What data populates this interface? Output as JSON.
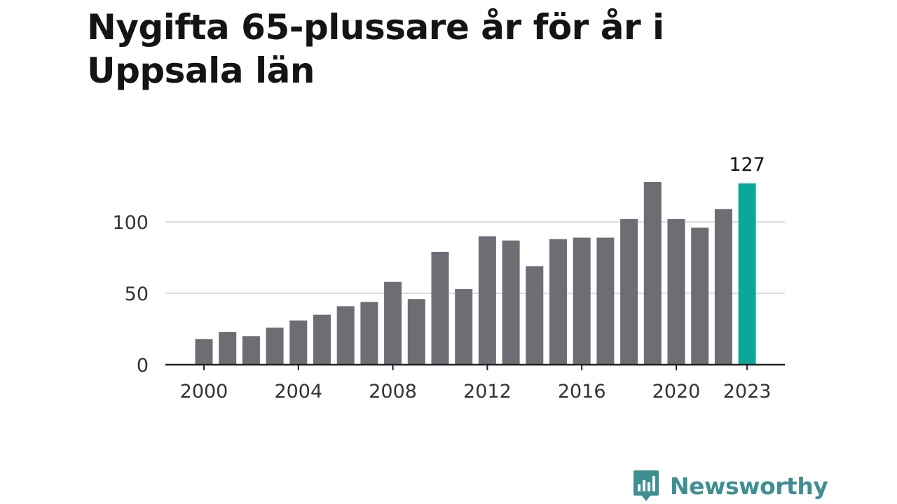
{
  "title": "Nygifta 65-plussare år för år i Uppsala län",
  "brand": {
    "name": "Newsworthy",
    "icon": "newsworthy-logo-icon",
    "color": "#3f8f92"
  },
  "chart_data": {
    "type": "bar",
    "title": "Nygifta 65-plussare år för år i Uppsala län",
    "xlabel": "",
    "ylabel": "",
    "x": [
      2000,
      2001,
      2002,
      2003,
      2004,
      2005,
      2006,
      2007,
      2008,
      2009,
      2010,
      2011,
      2012,
      2013,
      2014,
      2015,
      2016,
      2017,
      2018,
      2019,
      2020,
      2021,
      2022,
      2023
    ],
    "values": [
      18,
      23,
      20,
      26,
      31,
      35,
      41,
      44,
      58,
      46,
      79,
      53,
      90,
      87,
      69,
      88,
      89,
      89,
      102,
      128,
      102,
      96,
      109,
      127
    ],
    "xticks": [
      "2000",
      "2004",
      "2008",
      "2012",
      "2016",
      "2020",
      "2023"
    ],
    "xtick_values": [
      2000,
      2004,
      2008,
      2012,
      2016,
      2020,
      2023
    ],
    "yticks": [
      "0",
      "50",
      "100"
    ],
    "ytick_values": [
      0,
      50,
      100
    ],
    "ylim": [
      0,
      128
    ],
    "grid": true,
    "highlight": {
      "x": 2023,
      "label": "127"
    },
    "colors": {
      "bar": "#6e6d73",
      "highlight": "#0aa89b",
      "grid": "#dcdcdc",
      "axis": "#222222"
    }
  }
}
